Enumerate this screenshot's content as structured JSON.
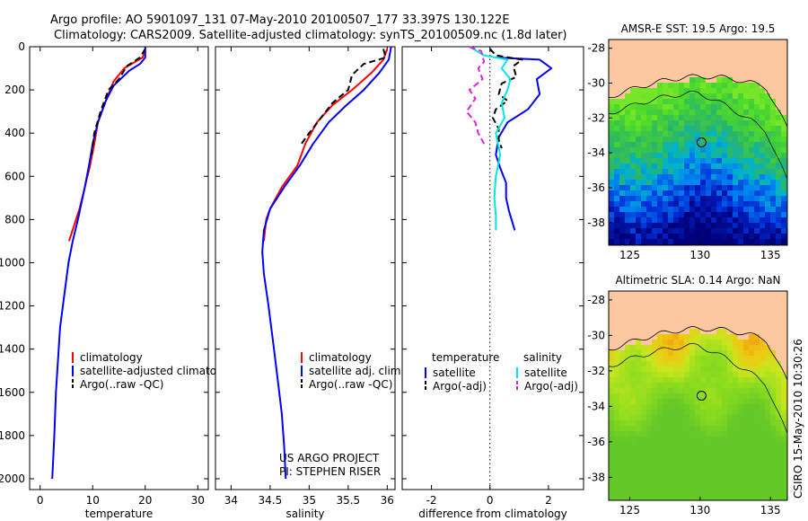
{
  "header": {
    "line1": "Argo profile: AO 5901097_131 07-May-2010 20100507_177 33.397S 130.122E",
    "line2": "Climatology: CARS2009. Satellite-adjusted climatology: synTS_20100509.nc (1.8d later)"
  },
  "side_label": "CSIRO 15-May-2010 10:30:26",
  "colors": {
    "climatology": "#ff0000",
    "satellite": "#0000ff",
    "argo": "#000000",
    "satellite_salinity": "#00e5e5",
    "argo_salinity": "#e020e0",
    "land": "#fdc8a0"
  },
  "chart_data": [
    {
      "id": "temperature",
      "type": "line",
      "xlabel": "temperature",
      "xlim": [
        -2,
        32
      ],
      "ylim": [
        0,
        2050
      ],
      "y_inverted": true,
      "xticks": [
        0,
        10,
        20,
        30
      ],
      "yticks": [
        0,
        200,
        400,
        600,
        800,
        1000,
        1200,
        1400,
        1600,
        1800,
        2000
      ],
      "legend": [
        "climatology",
        "satellite-adjusted climatology",
        "Argo(..raw -QC)"
      ],
      "series": [
        {
          "name": "climatology",
          "color": "#ff0000",
          "dash": false,
          "points": [
            [
              20,
              20
            ],
            [
              19.5,
              50
            ],
            [
              16,
              100
            ],
            [
              14,
              160
            ],
            [
              12.5,
              250
            ],
            [
              11,
              350
            ],
            [
              10.3,
              450
            ],
            [
              9.5,
              550
            ],
            [
              8.5,
              650
            ],
            [
              7.5,
              750
            ],
            [
              5.5,
              900
            ]
          ]
        },
        {
          "name": "satellite-adjusted climatology",
          "color": "#0000ff",
          "dash": false,
          "points": [
            [
              20,
              0
            ],
            [
              20,
              50
            ],
            [
              19,
              80
            ],
            [
              17,
              110
            ],
            [
              14,
              180
            ],
            [
              12.5,
              250
            ],
            [
              11,
              350
            ],
            [
              10,
              450
            ],
            [
              9.3,
              550
            ],
            [
              8.5,
              650
            ],
            [
              7.2,
              800
            ],
            [
              6.2,
              900
            ],
            [
              5.4,
              1000
            ],
            [
              4.6,
              1150
            ],
            [
              3.8,
              1300
            ],
            [
              3.4,
              1450
            ],
            [
              3,
              1600
            ],
            [
              2.7,
              1800
            ],
            [
              2.3,
              2000
            ]
          ]
        },
        {
          "name": "Argo(..raw -QC)",
          "color": "#000000",
          "dash": true,
          "points": [
            [
              20,
              10
            ],
            [
              19,
              50
            ],
            [
              16.5,
              90
            ],
            [
              15,
              150
            ],
            [
              13,
              200
            ],
            [
              11.5,
              300
            ],
            [
              10.3,
              400
            ],
            [
              9.8,
              500
            ]
          ]
        }
      ]
    },
    {
      "id": "salinity",
      "type": "line",
      "xlabel": "salinity",
      "xlim": [
        33.8,
        36.1
      ],
      "ylim": [
        0,
        2050
      ],
      "y_inverted": true,
      "xticks": [
        34,
        34.5,
        35,
        35.5,
        36
      ],
      "yticks": [
        0,
        200,
        400,
        600,
        800,
        1000,
        1200,
        1400,
        1600,
        1800,
        2000
      ],
      "legend": [
        "climatology",
        "satellite adj. clim.",
        "Argo(..raw -QC)"
      ],
      "annotations": [
        "US ARGO PROJECT",
        "PI: STEPHEN RISER"
      ],
      "series": [
        {
          "name": "climatology",
          "color": "#ff0000",
          "dash": false,
          "points": [
            [
              36,
              10
            ],
            [
              35.95,
              60
            ],
            [
              35.8,
              120
            ],
            [
              35.55,
              200
            ],
            [
              35.3,
              270
            ],
            [
              35.1,
              350
            ],
            [
              34.95,
              450
            ],
            [
              34.85,
              550
            ],
            [
              34.65,
              650
            ],
            [
              34.5,
              750
            ],
            [
              34.45,
              800
            ],
            [
              34.42,
              900
            ]
          ]
        },
        {
          "name": "satellite adj. clim.",
          "color": "#0000ff",
          "dash": false,
          "points": [
            [
              36.05,
              0
            ],
            [
              36.02,
              60
            ],
            [
              35.9,
              120
            ],
            [
              35.7,
              200
            ],
            [
              35.45,
              280
            ],
            [
              35.25,
              350
            ],
            [
              35.05,
              450
            ],
            [
              34.88,
              550
            ],
            [
              34.68,
              650
            ],
            [
              34.5,
              750
            ],
            [
              34.42,
              850
            ],
            [
              34.4,
              950
            ],
            [
              34.42,
              1050
            ],
            [
              34.48,
              1200
            ],
            [
              34.55,
              1400
            ],
            [
              34.6,
              1550
            ],
            [
              34.65,
              1700
            ],
            [
              34.68,
              1850
            ],
            [
              34.7,
              2000
            ]
          ]
        },
        {
          "name": "Argo(..raw -QC)",
          "color": "#000000",
          "dash": true,
          "points": [
            [
              35.95,
              10
            ],
            [
              35.98,
              50
            ],
            [
              35.7,
              80
            ],
            [
              35.55,
              130
            ],
            [
              35.5,
              200
            ],
            [
              35.3,
              260
            ],
            [
              35.15,
              330
            ],
            [
              35,
              400
            ],
            [
              34.9,
              450
            ]
          ]
        }
      ]
    },
    {
      "id": "difference",
      "type": "line",
      "xlabel": "difference from climatology",
      "xlim": [
        -3,
        3.2
      ],
      "ylim": [
        0,
        2050
      ],
      "y_inverted": true,
      "xticks": [
        -2,
        0,
        2
      ],
      "yticks": [
        0,
        200,
        400,
        600,
        800,
        1000,
        1200,
        1400,
        1600,
        1800,
        2000
      ],
      "legend_headers": [
        "temperature",
        "salinity"
      ],
      "legend": [
        "satellite",
        "Argo(-adj)",
        "satellite",
        "Argo(-adj)"
      ],
      "series": [
        {
          "name": "satellite",
          "quantity": "temperature",
          "color": "#0000ff",
          "dash": false,
          "points": [
            [
              0.2,
              50
            ],
            [
              1.7,
              60
            ],
            [
              2.1,
              100
            ],
            [
              1.6,
              150
            ],
            [
              1.7,
              220
            ],
            [
              1.3,
              290
            ],
            [
              0.6,
              350
            ],
            [
              0.3,
              420
            ],
            [
              0.2,
              500
            ],
            [
              0.35,
              560
            ],
            [
              0.55,
              630
            ],
            [
              0.55,
              700
            ],
            [
              0.65,
              760
            ],
            [
              0.85,
              850
            ]
          ]
        },
        {
          "name": "Argo(-adj)",
          "quantity": "temperature",
          "color": "#000000",
          "dash": true,
          "points": [
            [
              0,
              10
            ],
            [
              0.2,
              40
            ],
            [
              1.1,
              60
            ],
            [
              0.8,
              90
            ],
            [
              0.9,
              140
            ],
            [
              0.4,
              170
            ],
            [
              0.3,
              220
            ],
            [
              0.6,
              250
            ],
            [
              0.2,
              290
            ],
            [
              0.1,
              330
            ],
            [
              0.3,
              380
            ],
            [
              0.3,
              430
            ],
            [
              0.4,
              470
            ]
          ]
        },
        {
          "name": "satellite",
          "quantity": "salinity",
          "color": "#00e5e5",
          "dash": false,
          "points": [
            [
              -0.7,
              0
            ],
            [
              -0.2,
              40
            ],
            [
              0.6,
              60
            ],
            [
              0.4,
              100
            ],
            [
              0.7,
              150
            ],
            [
              0.6,
              200
            ],
            [
              0.4,
              260
            ],
            [
              0.5,
              330
            ],
            [
              0.2,
              400
            ],
            [
              0.35,
              500
            ],
            [
              0.2,
              600
            ],
            [
              0.15,
              700
            ],
            [
              0.2,
              780
            ],
            [
              0.2,
              850
            ]
          ]
        },
        {
          "name": "Argo(-adj)",
          "quantity": "salinity",
          "color": "#e020e0",
          "dash": true,
          "points": [
            [
              -0.7,
              0
            ],
            [
              -0.3,
              20
            ],
            [
              -0.2,
              70
            ],
            [
              -0.4,
              100
            ],
            [
              -0.25,
              150
            ],
            [
              -0.7,
              200
            ],
            [
              -0.5,
              240
            ],
            [
              -0.8,
              300
            ],
            [
              -0.5,
              350
            ],
            [
              -0.4,
              400
            ],
            [
              -0.2,
              450
            ]
          ]
        }
      ]
    },
    {
      "id": "sst_map",
      "type": "heatmap",
      "title": "AMSR-E SST: 19.5 Argo: 19.5",
      "xticks": [
        125,
        130,
        135
      ],
      "yticks": [
        -28,
        -30,
        -32,
        -34,
        -36,
        -38
      ],
      "xlim": [
        123.5,
        136.2
      ],
      "ylim": [
        -39.3,
        -27.5
      ],
      "marker": [
        130.1,
        -33.4
      ]
    },
    {
      "id": "sla_map",
      "type": "heatmap",
      "title": "Altimetric SLA: 0.14 Argo: NaN",
      "xticks": [
        125,
        130,
        135
      ],
      "yticks": [
        -28,
        -30,
        -32,
        -34,
        -36,
        -38
      ],
      "xlim": [
        123.5,
        136.2
      ],
      "ylim": [
        -39.3,
        -27.5
      ],
      "marker": [
        130.1,
        -33.4
      ]
    }
  ]
}
